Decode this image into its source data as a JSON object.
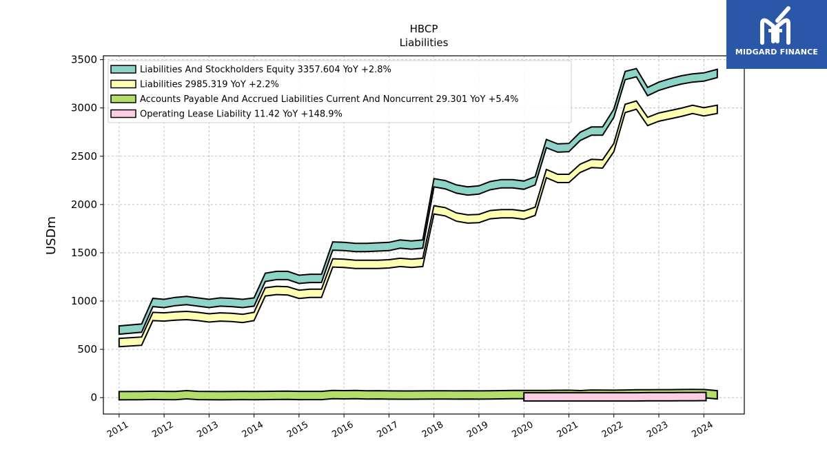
{
  "chart_data": {
    "type": "area",
    "title": "HBCP",
    "subtitle": "Liabilities",
    "ylabel": "USDm",
    "ylim": [
      -170,
      3540
    ],
    "yticks": [
      0,
      500,
      1000,
      1500,
      2000,
      2500,
      3000,
      3500
    ],
    "xlim": [
      2010.65,
      2024.9
    ],
    "xticks": [
      2011,
      2012,
      2013,
      2014,
      2015,
      2016,
      2017,
      2018,
      2019,
      2020,
      2021,
      2022,
      2023,
      2024
    ],
    "grid": true,
    "legend_position": "top-left",
    "series": [
      {
        "name": "Liabilities And Stockholders Equity  3357.604 YoY +2.8%",
        "color": "#8dd3c7",
        "x": [
          2011.0,
          2011.5,
          2011.75,
          2012.0,
          2012.25,
          2012.5,
          2012.75,
          2013.0,
          2013.25,
          2013.5,
          2013.75,
          2014.0,
          2014.25,
          2014.5,
          2014.75,
          2015.0,
          2015.25,
          2015.5,
          2015.75,
          2016.0,
          2016.25,
          2016.5,
          2016.75,
          2017.0,
          2017.25,
          2017.5,
          2017.75,
          2018.0,
          2018.25,
          2018.5,
          2018.75,
          2019.0,
          2019.25,
          2019.5,
          2019.75,
          2020.0,
          2020.25,
          2020.5,
          2020.75,
          2021.0,
          2021.25,
          2021.5,
          2021.75,
          2022.0,
          2022.25,
          2022.5,
          2022.75,
          2023.0,
          2023.25,
          2023.5,
          2023.75,
          2024.0,
          2024.3
        ],
        "values": [
          700,
          720,
          985,
          975,
          995,
          1005,
          990,
          975,
          990,
          985,
          975,
          990,
          1245,
          1265,
          1265,
          1225,
          1235,
          1235,
          1570,
          1565,
          1555,
          1555,
          1560,
          1565,
          1590,
          1580,
          1590,
          2225,
          2205,
          2160,
          2140,
          2150,
          2195,
          2215,
          2215,
          2200,
          2245,
          2630,
          2585,
          2590,
          2705,
          2760,
          2760,
          2945,
          3335,
          3365,
          3170,
          3225,
          3260,
          3290,
          3310,
          3320,
          3357.604
        ]
      },
      {
        "name": "Liabilities  2985.319 YoY +2.2%",
        "color": "#ffffb3",
        "x": [
          2011.0,
          2011.5,
          2011.75,
          2012.0,
          2012.25,
          2012.5,
          2012.75,
          2013.0,
          2013.25,
          2013.5,
          2013.75,
          2014.0,
          2014.25,
          2014.5,
          2014.75,
          2015.0,
          2015.25,
          2015.5,
          2015.75,
          2016.0,
          2016.25,
          2016.5,
          2016.75,
          2017.0,
          2017.25,
          2017.5,
          2017.75,
          2018.0,
          2018.25,
          2018.5,
          2018.75,
          2019.0,
          2019.25,
          2019.5,
          2019.75,
          2020.0,
          2020.25,
          2020.5,
          2020.75,
          2021.0,
          2021.25,
          2021.5,
          2021.75,
          2022.0,
          2022.25,
          2022.5,
          2022.75,
          2023.0,
          2023.25,
          2023.5,
          2023.75,
          2024.0,
          2024.3
        ],
        "values": [
          570,
          585,
          840,
          835,
          845,
          850,
          840,
          825,
          835,
          830,
          820,
          840,
          1095,
          1110,
          1105,
          1070,
          1080,
          1080,
          1395,
          1390,
          1380,
          1380,
          1380,
          1385,
          1400,
          1390,
          1400,
          1945,
          1925,
          1870,
          1850,
          1855,
          1895,
          1905,
          1905,
          1890,
          1930,
          2320,
          2270,
          2270,
          2375,
          2425,
          2420,
          2590,
          2995,
          3030,
          2860,
          2905,
          2930,
          2955,
          2985,
          2960,
          2985.319
        ]
      },
      {
        "name": "Accounts Payable And Accrued Liabilities Current And Noncurrent  29.301 YoY +5.4%",
        "color": "#b3de69",
        "x": [
          2011.0,
          2011.5,
          2011.75,
          2012.0,
          2012.25,
          2012.5,
          2012.75,
          2013.0,
          2013.25,
          2013.5,
          2013.75,
          2014.0,
          2014.25,
          2014.5,
          2014.75,
          2015.0,
          2015.25,
          2015.5,
          2015.75,
          2016.0,
          2016.25,
          2016.5,
          2016.75,
          2017.0,
          2017.25,
          2017.5,
          2017.75,
          2018.0,
          2018.25,
          2018.5,
          2018.75,
          2019.0,
          2019.25,
          2019.5,
          2019.75,
          2020.0,
          2020.25,
          2020.5,
          2020.75,
          2021.0,
          2021.25,
          2021.5,
          2021.75,
          2022.0,
          2022.25,
          2022.5,
          2022.75,
          2023.0,
          2023.25,
          2023.5,
          2023.75,
          2024.0,
          2024.3
        ],
        "values": [
          20,
          21,
          23,
          22,
          21,
          30,
          22,
          21,
          20,
          21,
          22,
          21,
          22,
          23,
          25,
          22,
          22,
          22,
          32,
          30,
          31,
          28,
          29,
          27,
          26,
          26,
          27,
          28,
          28,
          27,
          28,
          27,
          28,
          30,
          32,
          31,
          31,
          32,
          33,
          34,
          30,
          36,
          35,
          34,
          36,
          38,
          39,
          40,
          40,
          41,
          42,
          41,
          29.301
        ]
      },
      {
        "name": "Operating Lease Liability  11.42 YoY +148.9%",
        "color": "#fccde5",
        "x": [
          2020.0,
          2020.25,
          2020.5,
          2020.75,
          2021.0,
          2021.25,
          2021.5,
          2021.75,
          2022.0,
          2022.25,
          2022.5,
          2022.75,
          2023.0,
          2023.25,
          2023.5,
          2023.75,
          2024.05
        ],
        "values": [
          8,
          8,
          8,
          8,
          8,
          8,
          8,
          8,
          8,
          8,
          8,
          9,
          9,
          9,
          10,
          10,
          11.42
        ]
      }
    ]
  },
  "brand": {
    "name": "MIDGARD FINANCE",
    "background": "#2b57a8"
  }
}
